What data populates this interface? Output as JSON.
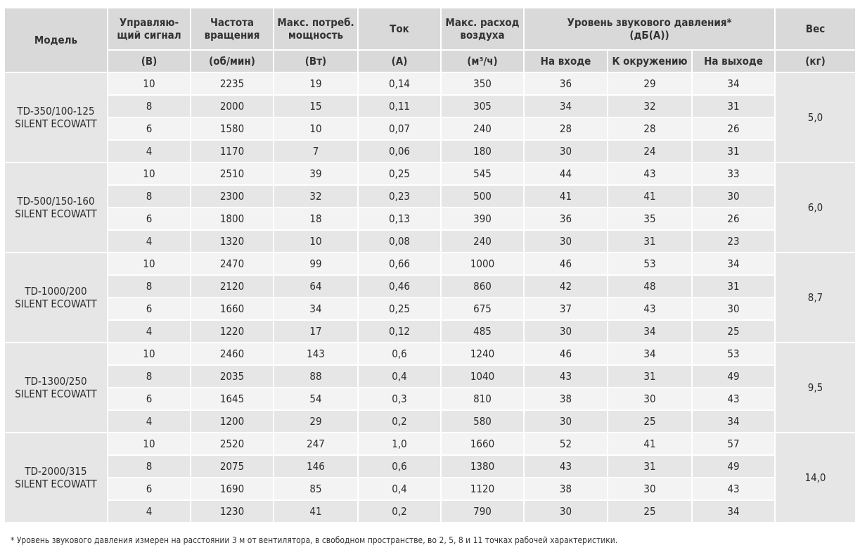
{
  "header": {
    "model": "Модель",
    "signal": [
      "Управляю-",
      "щий сигнал"
    ],
    "signal_unit": "(В)",
    "speed": [
      "Частота",
      "вращения"
    ],
    "speed_unit": "(об/мин)",
    "power": [
      "Макс. потреб.",
      "мощность"
    ],
    "power_unit": "(Вт)",
    "current": "Ток",
    "current_unit": "(А)",
    "airflow": [
      "Макс. расход",
      "воздуха"
    ],
    "airflow_unit": "(м³/ч)",
    "sound": [
      "Уровень звукового давления*",
      "(дБ(А))"
    ],
    "sound_in": "На входе",
    "sound_env": "К окружению",
    "sound_out": "На выходе",
    "weight": "Вес",
    "weight_unit": "(кг)"
  },
  "models": [
    {
      "name": [
        "TD-350/100-125",
        "SILENT ECOWATT"
      ],
      "weight": "5,0",
      "rows": [
        [
          "10",
          "2235",
          "19",
          "0,14",
          "350",
          "36",
          "29",
          "34"
        ],
        [
          "8",
          "2000",
          "15",
          "0,11",
          "305",
          "34",
          "32",
          "31"
        ],
        [
          "6",
          "1580",
          "10",
          "0,07",
          "240",
          "28",
          "28",
          "26"
        ],
        [
          "4",
          "1170",
          "7",
          "0,06",
          "180",
          "30",
          "24",
          "31"
        ]
      ]
    },
    {
      "name": [
        "TD-500/150-160",
        "SILENT ECOWATT"
      ],
      "weight": "6,0",
      "rows": [
        [
          "10",
          "2510",
          "39",
          "0,25",
          "545",
          "44",
          "43",
          "33"
        ],
        [
          "8",
          "2300",
          "32",
          "0,23",
          "500",
          "41",
          "41",
          "30"
        ],
        [
          "6",
          "1800",
          "18",
          "0,13",
          "390",
          "36",
          "35",
          "26"
        ],
        [
          "4",
          "1320",
          "10",
          "0,08",
          "240",
          "30",
          "31",
          "23"
        ]
      ]
    },
    {
      "name": [
        "TD-1000/200",
        "SILENT ECOWATT"
      ],
      "weight": "8,7",
      "rows": [
        [
          "10",
          "2470",
          "99",
          "0,66",
          "1000",
          "46",
          "53",
          "34"
        ],
        [
          "8",
          "2120",
          "64",
          "0,46",
          "860",
          "42",
          "48",
          "31"
        ],
        [
          "6",
          "1660",
          "34",
          "0,25",
          "675",
          "37",
          "43",
          "30"
        ],
        [
          "4",
          "1220",
          "17",
          "0,12",
          "485",
          "30",
          "34",
          "25"
        ]
      ]
    },
    {
      "name": [
        "TD-1300/250",
        "SILENT ECOWATT"
      ],
      "weight": "9,5",
      "rows": [
        [
          "10",
          "2460",
          "143",
          "0,6",
          "1240",
          "46",
          "34",
          "53"
        ],
        [
          "8",
          "2035",
          "88",
          "0,4",
          "1040",
          "43",
          "31",
          "49"
        ],
        [
          "6",
          "1645",
          "54",
          "0,3",
          "810",
          "38",
          "30",
          "43"
        ],
        [
          "4",
          "1200",
          "29",
          "0,2",
          "580",
          "30",
          "25",
          "34"
        ]
      ]
    },
    {
      "name": [
        "TD-2000/315",
        "SILENT ECOWATT"
      ],
      "weight": "14,0",
      "rows": [
        [
          "10",
          "2520",
          "247",
          "1,0",
          "1660",
          "52",
          "41",
          "57"
        ],
        [
          "8",
          "2075",
          "146",
          "0,6",
          "1380",
          "43",
          "31",
          "49"
        ],
        [
          "6",
          "1690",
          "85",
          "0,4",
          "1120",
          "38",
          "30",
          "43"
        ],
        [
          "4",
          "1230",
          "41",
          "0,2",
          "790",
          "30",
          "25",
          "34"
        ]
      ]
    }
  ],
  "footnote": "* Уровень звукового давления измерен на расстоянии 3 м от вентилятора, в свободном пространстве, во 2, 5, 8 и 11 точках рабочей характеристики."
}
